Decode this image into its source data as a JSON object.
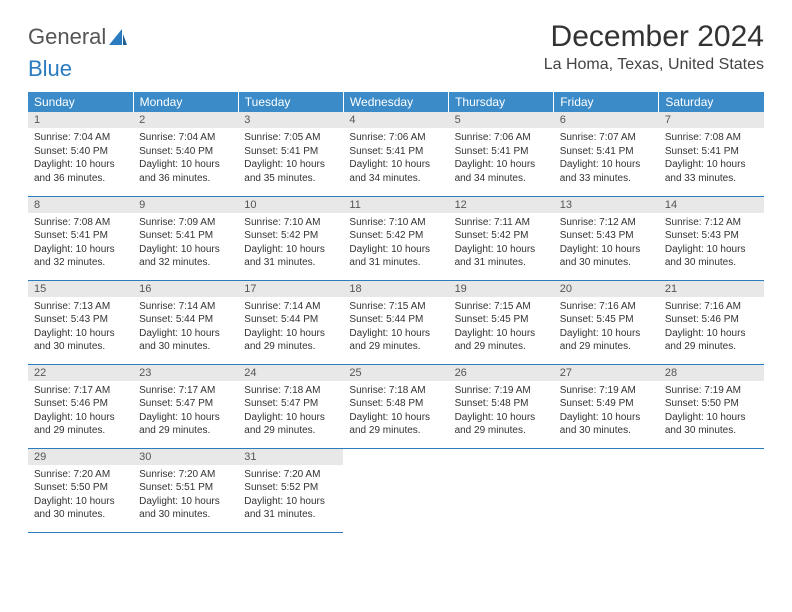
{
  "brand": {
    "part1": "General",
    "part2": "Blue"
  },
  "title": "December 2024",
  "location": "La Homa, Texas, United States",
  "colors": {
    "header_bg": "#3b8bc8",
    "header_text": "#ffffff",
    "daynum_bg": "#e8e8e8",
    "border": "#2a7bbf",
    "logo_accent": "#2a7bbf",
    "body_text": "#333333"
  },
  "fonts": {
    "title_size": 30,
    "location_size": 16,
    "th_size": 12,
    "cell_size": 10
  },
  "weekdays": [
    "Sunday",
    "Monday",
    "Tuesday",
    "Wednesday",
    "Thursday",
    "Friday",
    "Saturday"
  ],
  "weeks": [
    [
      {
        "n": "1",
        "sr": "Sunrise: 7:04 AM",
        "ss": "Sunset: 5:40 PM",
        "dl": "Daylight: 10 hours and 36 minutes."
      },
      {
        "n": "2",
        "sr": "Sunrise: 7:04 AM",
        "ss": "Sunset: 5:40 PM",
        "dl": "Daylight: 10 hours and 36 minutes."
      },
      {
        "n": "3",
        "sr": "Sunrise: 7:05 AM",
        "ss": "Sunset: 5:41 PM",
        "dl": "Daylight: 10 hours and 35 minutes."
      },
      {
        "n": "4",
        "sr": "Sunrise: 7:06 AM",
        "ss": "Sunset: 5:41 PM",
        "dl": "Daylight: 10 hours and 34 minutes."
      },
      {
        "n": "5",
        "sr": "Sunrise: 7:06 AM",
        "ss": "Sunset: 5:41 PM",
        "dl": "Daylight: 10 hours and 34 minutes."
      },
      {
        "n": "6",
        "sr": "Sunrise: 7:07 AM",
        "ss": "Sunset: 5:41 PM",
        "dl": "Daylight: 10 hours and 33 minutes."
      },
      {
        "n": "7",
        "sr": "Sunrise: 7:08 AM",
        "ss": "Sunset: 5:41 PM",
        "dl": "Daylight: 10 hours and 33 minutes."
      }
    ],
    [
      {
        "n": "8",
        "sr": "Sunrise: 7:08 AM",
        "ss": "Sunset: 5:41 PM",
        "dl": "Daylight: 10 hours and 32 minutes."
      },
      {
        "n": "9",
        "sr": "Sunrise: 7:09 AM",
        "ss": "Sunset: 5:41 PM",
        "dl": "Daylight: 10 hours and 32 minutes."
      },
      {
        "n": "10",
        "sr": "Sunrise: 7:10 AM",
        "ss": "Sunset: 5:42 PM",
        "dl": "Daylight: 10 hours and 31 minutes."
      },
      {
        "n": "11",
        "sr": "Sunrise: 7:10 AM",
        "ss": "Sunset: 5:42 PM",
        "dl": "Daylight: 10 hours and 31 minutes."
      },
      {
        "n": "12",
        "sr": "Sunrise: 7:11 AM",
        "ss": "Sunset: 5:42 PM",
        "dl": "Daylight: 10 hours and 31 minutes."
      },
      {
        "n": "13",
        "sr": "Sunrise: 7:12 AM",
        "ss": "Sunset: 5:43 PM",
        "dl": "Daylight: 10 hours and 30 minutes."
      },
      {
        "n": "14",
        "sr": "Sunrise: 7:12 AM",
        "ss": "Sunset: 5:43 PM",
        "dl": "Daylight: 10 hours and 30 minutes."
      }
    ],
    [
      {
        "n": "15",
        "sr": "Sunrise: 7:13 AM",
        "ss": "Sunset: 5:43 PM",
        "dl": "Daylight: 10 hours and 30 minutes."
      },
      {
        "n": "16",
        "sr": "Sunrise: 7:14 AM",
        "ss": "Sunset: 5:44 PM",
        "dl": "Daylight: 10 hours and 30 minutes."
      },
      {
        "n": "17",
        "sr": "Sunrise: 7:14 AM",
        "ss": "Sunset: 5:44 PM",
        "dl": "Daylight: 10 hours and 29 minutes."
      },
      {
        "n": "18",
        "sr": "Sunrise: 7:15 AM",
        "ss": "Sunset: 5:44 PM",
        "dl": "Daylight: 10 hours and 29 minutes."
      },
      {
        "n": "19",
        "sr": "Sunrise: 7:15 AM",
        "ss": "Sunset: 5:45 PM",
        "dl": "Daylight: 10 hours and 29 minutes."
      },
      {
        "n": "20",
        "sr": "Sunrise: 7:16 AM",
        "ss": "Sunset: 5:45 PM",
        "dl": "Daylight: 10 hours and 29 minutes."
      },
      {
        "n": "21",
        "sr": "Sunrise: 7:16 AM",
        "ss": "Sunset: 5:46 PM",
        "dl": "Daylight: 10 hours and 29 minutes."
      }
    ],
    [
      {
        "n": "22",
        "sr": "Sunrise: 7:17 AM",
        "ss": "Sunset: 5:46 PM",
        "dl": "Daylight: 10 hours and 29 minutes."
      },
      {
        "n": "23",
        "sr": "Sunrise: 7:17 AM",
        "ss": "Sunset: 5:47 PM",
        "dl": "Daylight: 10 hours and 29 minutes."
      },
      {
        "n": "24",
        "sr": "Sunrise: 7:18 AM",
        "ss": "Sunset: 5:47 PM",
        "dl": "Daylight: 10 hours and 29 minutes."
      },
      {
        "n": "25",
        "sr": "Sunrise: 7:18 AM",
        "ss": "Sunset: 5:48 PM",
        "dl": "Daylight: 10 hours and 29 minutes."
      },
      {
        "n": "26",
        "sr": "Sunrise: 7:19 AM",
        "ss": "Sunset: 5:48 PM",
        "dl": "Daylight: 10 hours and 29 minutes."
      },
      {
        "n": "27",
        "sr": "Sunrise: 7:19 AM",
        "ss": "Sunset: 5:49 PM",
        "dl": "Daylight: 10 hours and 30 minutes."
      },
      {
        "n": "28",
        "sr": "Sunrise: 7:19 AM",
        "ss": "Sunset: 5:50 PM",
        "dl": "Daylight: 10 hours and 30 minutes."
      }
    ],
    [
      {
        "n": "29",
        "sr": "Sunrise: 7:20 AM",
        "ss": "Sunset: 5:50 PM",
        "dl": "Daylight: 10 hours and 30 minutes."
      },
      {
        "n": "30",
        "sr": "Sunrise: 7:20 AM",
        "ss": "Sunset: 5:51 PM",
        "dl": "Daylight: 10 hours and 30 minutes."
      },
      {
        "n": "31",
        "sr": "Sunrise: 7:20 AM",
        "ss": "Sunset: 5:52 PM",
        "dl": "Daylight: 10 hours and 31 minutes."
      },
      null,
      null,
      null,
      null
    ]
  ]
}
